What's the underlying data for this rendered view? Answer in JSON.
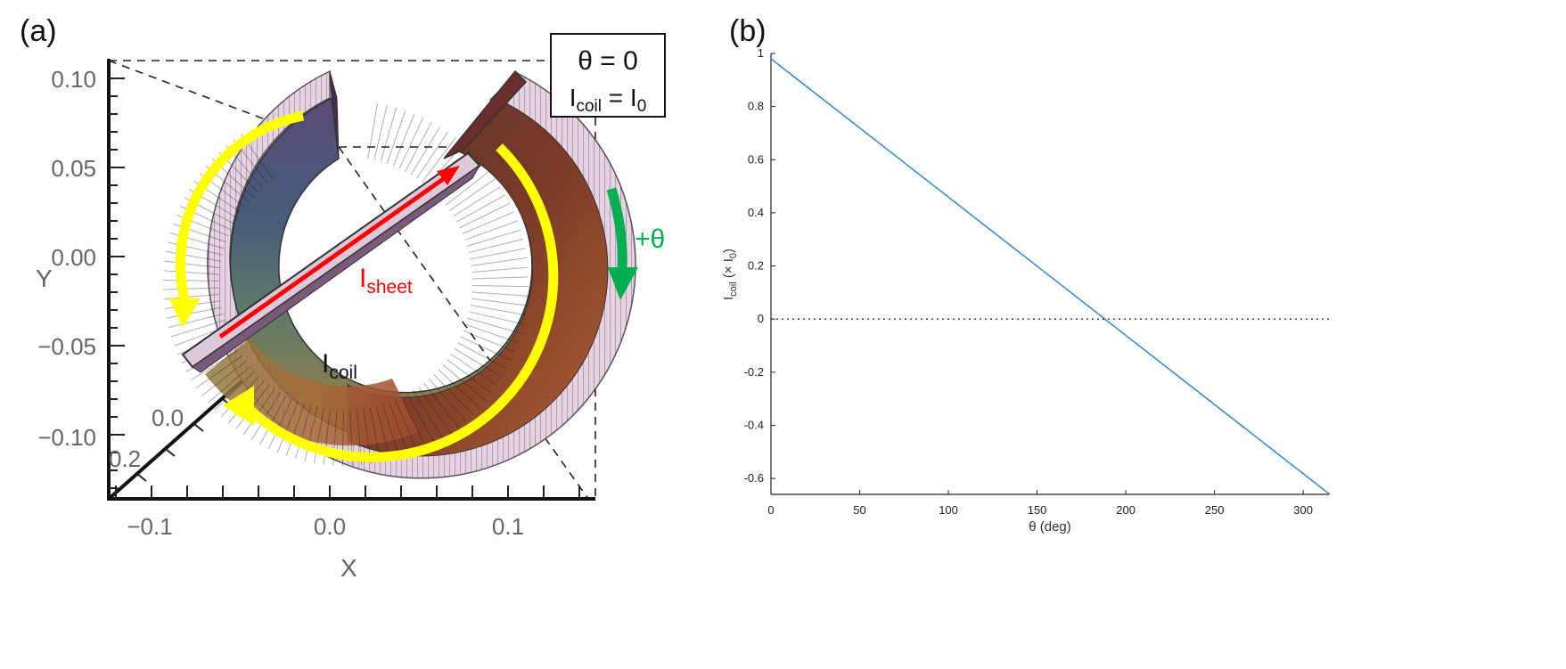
{
  "panel_a": {
    "label": "(a)",
    "x_axis_label": "X",
    "y_axis_label": "Y",
    "x_ticks": [
      "−0.1",
      "0.0",
      "0.1"
    ],
    "y_ticks": [
      "0.10",
      "0.05",
      "0.00",
      "−0.05",
      "−0.10"
    ],
    "z_ticks": [
      "0.0",
      "0.2"
    ],
    "box": {
      "theta_line": "θ = 0",
      "icoil_main": "I",
      "icoil_sub": "coil",
      "eq": " = I",
      "i0_sub": "0"
    },
    "rotation_label": "+θ",
    "sheet_label": {
      "main": "I",
      "sub": "sheet"
    },
    "coil_label": {
      "main": "I",
      "sub": "coil"
    },
    "colors": {
      "arrow_yellow": "#ffff00",
      "arrow_red": "#ff0000",
      "arrow_green": "#00b050",
      "sheet_fill": "#ddc9da"
    }
  },
  "panel_b": {
    "label": "(b)",
    "xlabel": "θ (deg)",
    "ylabel": {
      "main": "I",
      "sub": "coil",
      "rest": " (× I",
      "sub2": "0",
      "end": ")"
    },
    "x_ticks": [
      "0",
      "50",
      "100",
      "150",
      "200",
      "250",
      "300"
    ],
    "y_ticks": [
      "1",
      "0.8",
      "0.6",
      "0.4",
      "0.2",
      "0",
      "-0.2",
      "-0.4",
      "-0.6"
    ]
  },
  "chart_data": [
    {
      "type": "line",
      "title": "",
      "xlabel": "θ (deg)",
      "ylabel": "I_coil (× I_0)",
      "xlim": [
        0,
        315
      ],
      "ylim": [
        -0.66,
        1.0
      ],
      "series": [
        {
          "name": "I_coil",
          "color": "#3d8fd1",
          "x": [
            0,
            315
          ],
          "values": [
            0.98,
            -0.66
          ]
        },
        {
          "name": "zero line",
          "color": "#333333",
          "style": "dotted",
          "x": [
            0,
            315
          ],
          "values": [
            0,
            0
          ]
        }
      ]
    }
  ]
}
